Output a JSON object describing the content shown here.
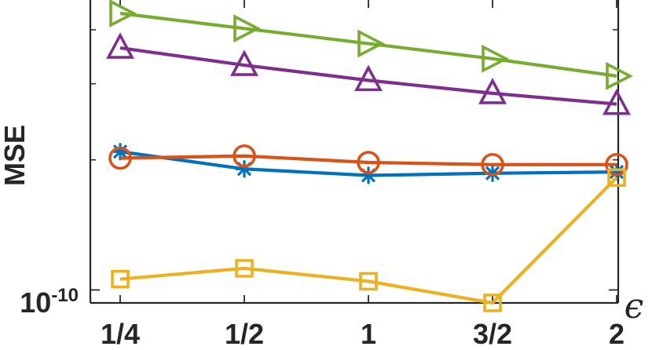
{
  "chart_data": {
    "type": "line",
    "title": "",
    "xlabel": "ϵ",
    "ylabel": "MSE",
    "yscale": "log",
    "categories": [
      "1/4",
      "1/2",
      "1",
      "3/2",
      "2"
    ],
    "y_tick_label": {
      "base": "10",
      "exponent": "-10"
    },
    "ylim_log10": [
      -10.03,
      -9.36
    ],
    "grid": false,
    "series": [
      {
        "marker": "triangle-right",
        "color": "#77AC30",
        "log10_values": [
          -9.36,
          -9.395,
          -9.43,
          -9.465,
          -9.505
        ]
      },
      {
        "marker": "triangle-up",
        "color": "#7E2F8E",
        "log10_values": [
          -9.44,
          -9.48,
          -9.515,
          -9.545,
          -9.57
        ]
      },
      {
        "marker": "asterisk",
        "color": "#0072BD",
        "log10_values": [
          -9.68,
          -9.72,
          -9.735,
          -9.73,
          -9.727
        ]
      },
      {
        "marker": "circle",
        "color": "#D95319",
        "log10_values": [
          -9.695,
          -9.69,
          -9.705,
          -9.71,
          -9.71
        ]
      },
      {
        "marker": "square",
        "color": "#EDB120",
        "log10_values": [
          -9.975,
          -9.95,
          -9.98,
          -10.03,
          -9.74
        ]
      }
    ]
  }
}
